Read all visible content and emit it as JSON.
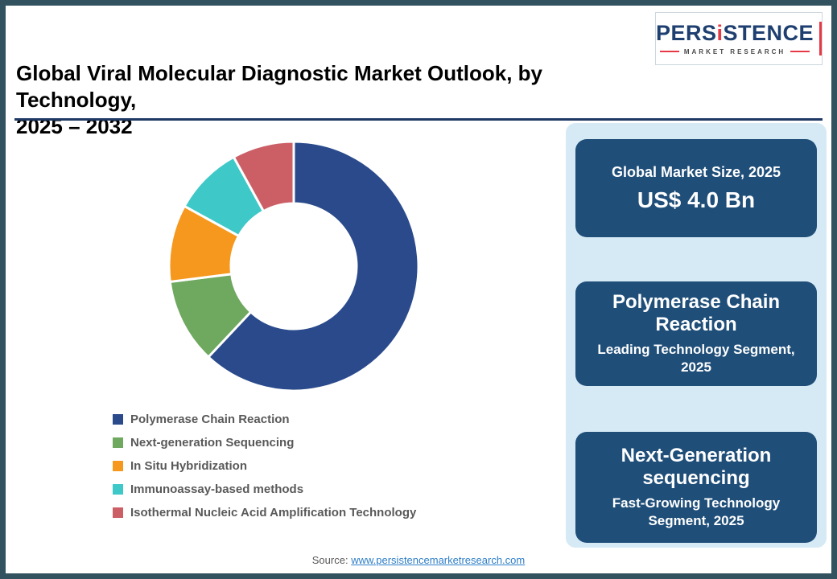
{
  "header": {
    "title_line1": "Global Viral Molecular Diagnostic Market Outlook, by Technology,",
    "title_line2": "2025 – 2032",
    "logo": {
      "brand_part1": "PERS",
      "brand_i": "i",
      "brand_part2": "STENCE",
      "subtitle": "MARKET RESEARCH"
    }
  },
  "chart_data": {
    "type": "pie",
    "variant": "donut",
    "title": "Global Viral Molecular Diagnostic Market Outlook, by Technology, 2025 – 2032",
    "categories": [
      "Polymerase Chain Reaction",
      "Next-generation Sequencing",
      "In Situ Hybridization",
      "Immunoassay-based methods",
      "Isothermal Nucleic Acid Amplification Technology"
    ],
    "values": [
      62,
      11,
      10,
      9,
      8
    ],
    "values_note": "percent share estimated from arc angles; no data labels shown in figure",
    "colors": [
      "#2a4a8c",
      "#6fa85f",
      "#f5981d",
      "#3fc8c8",
      "#cc5f66"
    ],
    "legend_position": "bottom-left",
    "start_angle_deg": 0,
    "direction": "clockwise",
    "donut_hole_ratio": 0.5
  },
  "side_panel": {
    "boxes": [
      {
        "line1": "Global Market Size, 2025",
        "line2": "US$ 4.0 Bn"
      },
      {
        "line1": "Polymerase Chain Reaction",
        "line2": "Leading Technology Segment, 2025"
      },
      {
        "line1": "Next-Generation sequencing",
        "line2": "Fast-Growing Technology Segment, 2025"
      }
    ]
  },
  "footer": {
    "source_label": "Source:",
    "source_link": "www.persistencemarketresearch.com"
  },
  "theme": {
    "frame_color": "#32525f",
    "panel_bg": "#d6eaf6",
    "box_bg": "#1f4e79",
    "accent_red": "#e63946",
    "link_color": "#2f7ec7",
    "legend_text": "#595959"
  }
}
